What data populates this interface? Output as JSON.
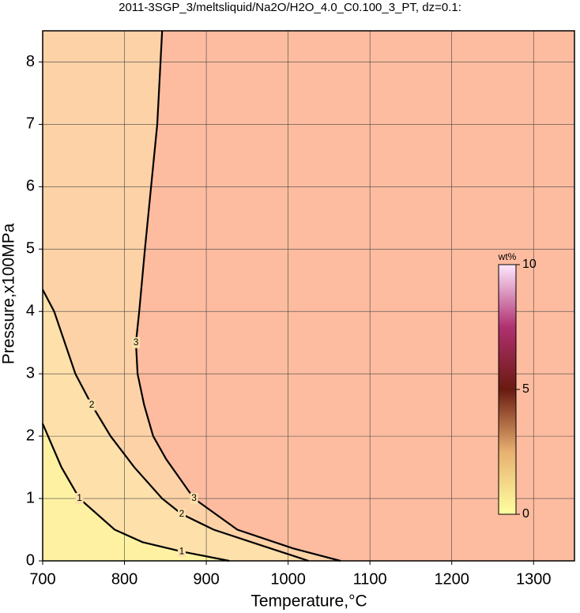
{
  "chart_data": {
    "type": "contour",
    "title": "2011-3SGP_3/meltsliquid/Na2O/H2O_4.0_C0.100_3_PT, dz=0.1:",
    "x_label": "Temperature,°C",
    "y_label": "Pressure,x100MPa",
    "xlim": [
      700,
      1350
    ],
    "ylim": [
      0,
      8.5
    ],
    "xticks": [
      700,
      800,
      900,
      1000,
      1100,
      1200,
      1300
    ],
    "yticks": [
      0,
      1,
      2,
      3,
      4,
      5,
      6,
      7,
      8
    ],
    "grid": true,
    "contours": [
      {
        "level": 1,
        "x": [
          700,
          723,
          745,
          788,
          822,
          870,
          928
        ],
        "y": [
          2.2,
          1.5,
          1.0,
          0.5,
          0.3,
          0.15,
          0
        ]
      },
      {
        "level": 2,
        "x": [
          700,
          714,
          740,
          760,
          783,
          812,
          846,
          870,
          909,
          967,
          1025
        ],
        "y": [
          4.35,
          4.0,
          3.0,
          2.5,
          2.0,
          1.5,
          1.0,
          0.75,
          0.5,
          0.25,
          0
        ]
      },
      {
        "level": 3,
        "x": [
          846,
          840,
          825,
          818,
          814,
          816,
          824,
          835,
          851,
          885,
          938,
          1006,
          1064
        ],
        "y": [
          8.5,
          7.0,
          5.0,
          4.0,
          3.5,
          3.0,
          2.5,
          2.0,
          1.63,
          1.0,
          0.5,
          0.2,
          0
        ]
      }
    ],
    "colorbar": {
      "label": "wt%",
      "lim": [
        0,
        10
      ],
      "ticks": [
        0,
        5,
        10
      ]
    }
  }
}
